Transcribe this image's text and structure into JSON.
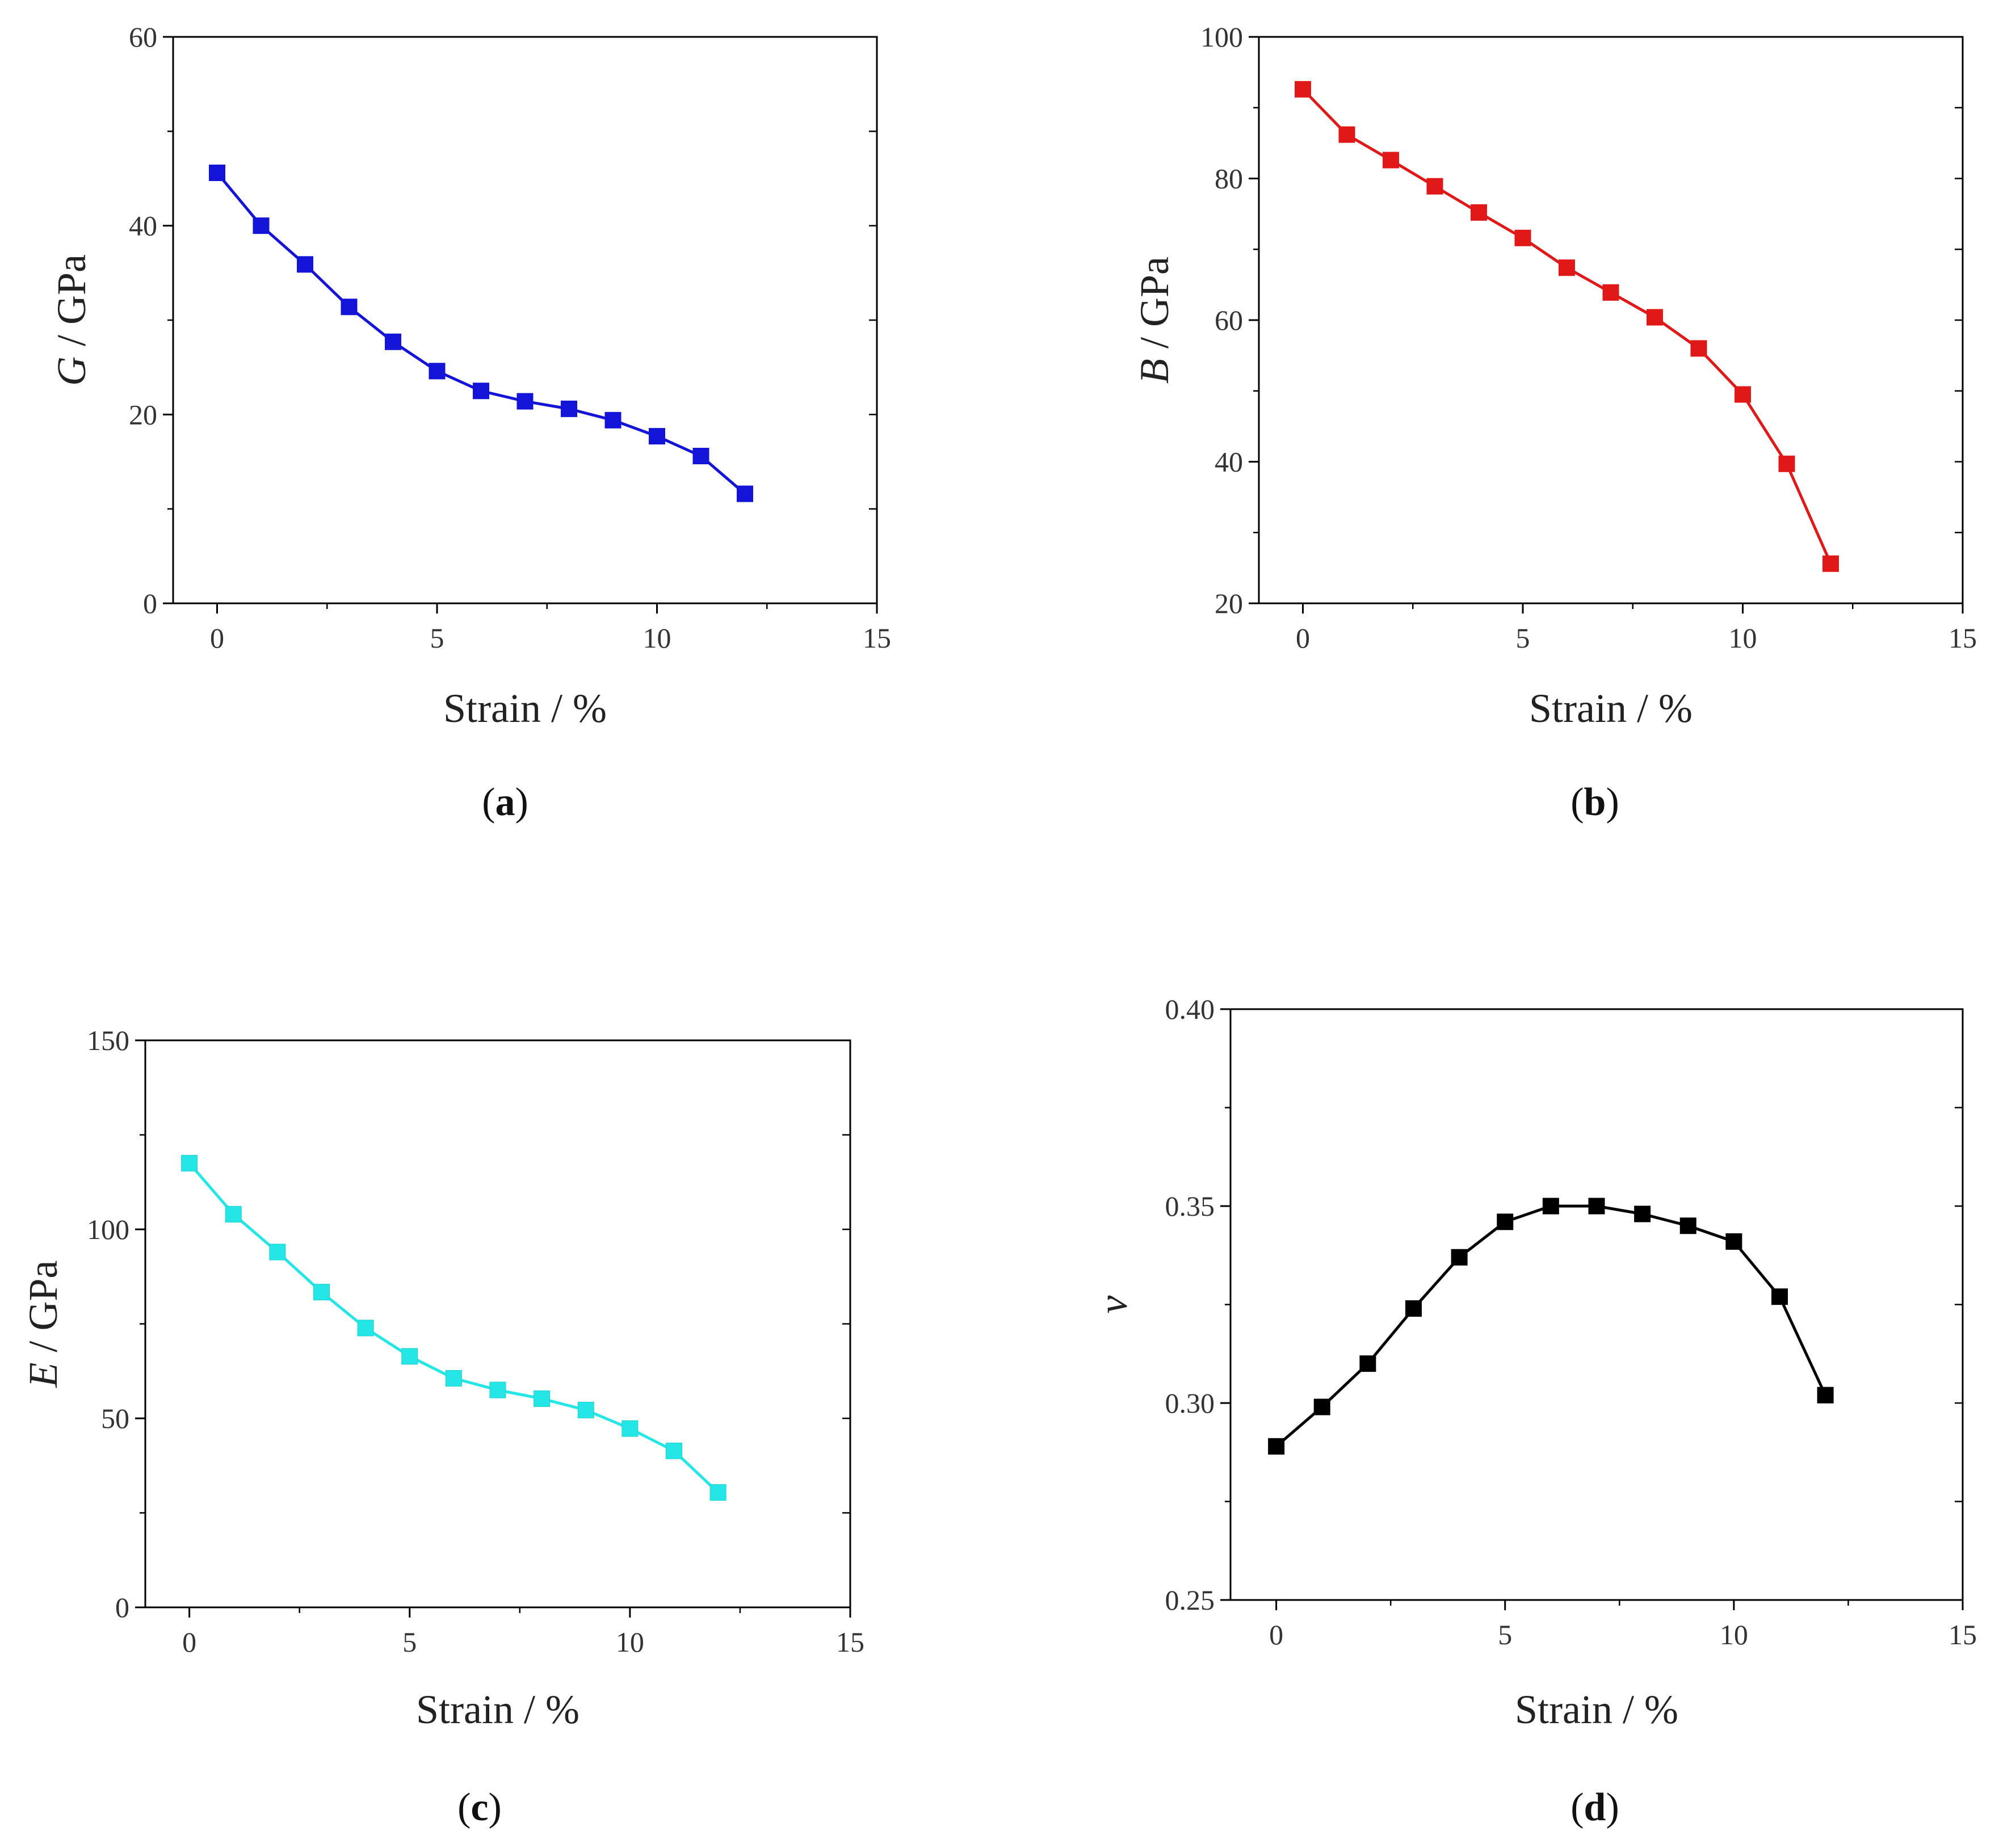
{
  "chart_data": [
    {
      "type": "line",
      "panel": "a",
      "caption_open": "(",
      "caption_letter": "a",
      "caption_close": ")",
      "color": "#1414d8",
      "xlabel": "Strain / %",
      "ylabel_symbol": "G",
      "ylabel_unit": " / GPa",
      "xlim": [
        -1,
        15
      ],
      "ylim": [
        0,
        60
      ],
      "xticks": [
        0,
        5,
        10,
        15
      ],
      "yticks": [
        0,
        20,
        40,
        60
      ],
      "x": [
        0,
        1,
        2,
        3,
        4,
        5,
        6,
        7,
        8,
        9,
        10,
        11,
        12
      ],
      "values": [
        45.6,
        40.0,
        35.9,
        31.4,
        27.7,
        24.6,
        22.5,
        21.4,
        20.6,
        19.4,
        17.7,
        15.6,
        11.6
      ]
    },
    {
      "type": "line",
      "panel": "b",
      "caption_open": "(",
      "caption_letter": "b",
      "caption_close": ")",
      "color": "#e01818",
      "xlabel": "Strain / %",
      "ylabel_symbol": "B",
      "ylabel_unit": " / GPa",
      "xlim": [
        -1,
        15
      ],
      "ylim": [
        20,
        100
      ],
      "xticks": [
        0,
        5,
        10,
        15
      ],
      "yticks": [
        20,
        40,
        60,
        80,
        100
      ],
      "x": [
        0,
        1,
        2,
        3,
        4,
        5,
        6,
        7,
        8,
        9,
        10,
        11,
        12
      ],
      "values": [
        92.6,
        86.2,
        82.6,
        78.9,
        75.2,
        71.6,
        67.4,
        63.9,
        60.4,
        56.0,
        49.5,
        39.7,
        25.6
      ]
    },
    {
      "type": "line",
      "panel": "c",
      "caption_open": "(",
      "caption_letter": "c",
      "caption_close": ")",
      "color": "#24e6e6",
      "xlabel": "Strain / %",
      "ylabel_symbol": "E",
      "ylabel_unit": " / GPa",
      "xlim": [
        -1,
        15
      ],
      "ylim": [
        0,
        150
      ],
      "xticks": [
        0,
        5,
        10,
        15
      ],
      "yticks": [
        0,
        50,
        100,
        150
      ],
      "x": [
        0,
        1,
        2,
        3,
        4,
        5,
        6,
        7,
        8,
        9,
        10,
        11,
        12
      ],
      "values": [
        117.5,
        104.0,
        94.0,
        83.4,
        73.9,
        66.4,
        60.6,
        57.5,
        55.2,
        52.2,
        47.3,
        41.4,
        30.4
      ]
    },
    {
      "type": "line",
      "panel": "d",
      "caption_open": "(",
      "caption_letter": "d",
      "caption_close": ")",
      "color": "#000000",
      "xlabel": "Strain / %",
      "ylabel_symbol": "ν",
      "ylabel_unit": "",
      "xlim": [
        -1,
        15
      ],
      "ylim": [
        0.25,
        0.4
      ],
      "xticks": [
        0,
        5,
        10,
        15
      ],
      "yticks": [
        0.25,
        0.3,
        0.35,
        0.4
      ],
      "ytick_decimals": 2,
      "x": [
        0,
        1,
        2,
        3,
        4,
        5,
        6,
        7,
        8,
        9,
        10,
        11,
        12
      ],
      "values": [
        0.289,
        0.299,
        0.31,
        0.324,
        0.337,
        0.346,
        0.35,
        0.35,
        0.348,
        0.345,
        0.341,
        0.327,
        0.302
      ]
    }
  ]
}
